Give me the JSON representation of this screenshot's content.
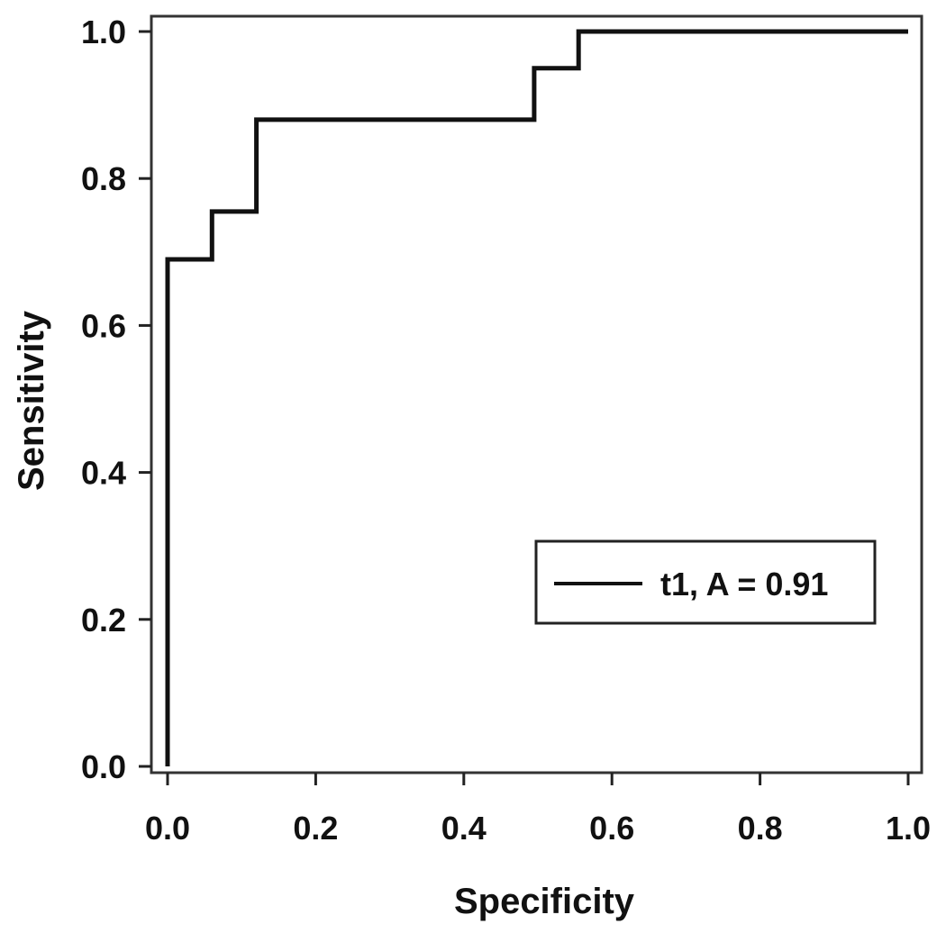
{
  "chart_data": {
    "type": "line",
    "step": true,
    "xlabel": "Specificity",
    "ylabel": "Sensitivity",
    "xlim": [
      0,
      1
    ],
    "ylim": [
      0,
      1
    ],
    "x_ticks": [
      0.0,
      0.2,
      0.4,
      0.6,
      0.8,
      1.0
    ],
    "y_ticks": [
      0.0,
      0.2,
      0.4,
      0.6,
      0.8,
      1.0
    ],
    "x_tick_labels": [
      "0.0",
      "0.2",
      "0.4",
      "0.6",
      "0.8",
      "1.0"
    ],
    "y_tick_labels": [
      "0.0",
      "0.2",
      "0.4",
      "0.6",
      "0.8",
      "1.0"
    ],
    "grid": false,
    "legend_position": "bottom-right",
    "colors": {
      "line": "#111111",
      "frame": "#333333",
      "background": "#ffffff"
    },
    "series": [
      {
        "name": "t1, A = 0.91",
        "points": [
          [
            0.0,
            0.0
          ],
          [
            0.0,
            0.69
          ],
          [
            0.06,
            0.69
          ],
          [
            0.06,
            0.755
          ],
          [
            0.12,
            0.755
          ],
          [
            0.12,
            0.88
          ],
          [
            0.495,
            0.88
          ],
          [
            0.495,
            0.95
          ],
          [
            0.555,
            0.95
          ],
          [
            0.555,
            1.0
          ],
          [
            1.0,
            1.0
          ]
        ]
      }
    ]
  }
}
